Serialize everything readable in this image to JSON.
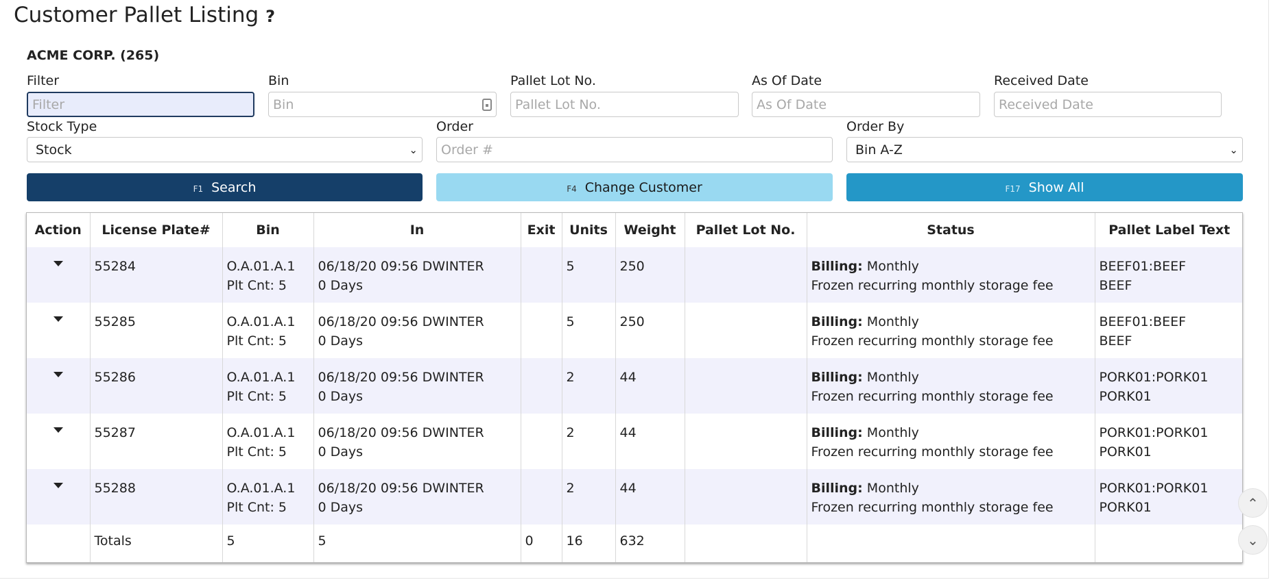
{
  "page": {
    "title": "Customer Pallet Listing",
    "help_symbol": "?"
  },
  "customer": {
    "name": "ACME CORP. (265)"
  },
  "filters": {
    "filter": {
      "label": "Filter",
      "placeholder": "Filter",
      "value": ""
    },
    "bin": {
      "label": "Bin",
      "placeholder": "Bin",
      "value": ""
    },
    "pallet_lot": {
      "label": "Pallet Lot No.",
      "placeholder": "Pallet Lot No.",
      "value": ""
    },
    "as_of_date": {
      "label": "As Of Date",
      "placeholder": "As Of Date",
      "value": ""
    },
    "received_date": {
      "label": "Received Date",
      "placeholder": "Received Date",
      "value": ""
    },
    "stock_type": {
      "label": "Stock Type",
      "selected": "Stock"
    },
    "order": {
      "label": "Order",
      "placeholder": "Order #",
      "value": ""
    },
    "order_by": {
      "label": "Order By",
      "selected": "Bin A-Z"
    }
  },
  "buttons": {
    "search": {
      "key": "F1",
      "label": "Search"
    },
    "change_customer": {
      "key": "F4",
      "label": "Change Customer"
    },
    "show_all": {
      "key": "F17",
      "label": "Show All"
    }
  },
  "table": {
    "columns": [
      "Action",
      "License Plate#",
      "Bin",
      "In",
      "Exit",
      "Units",
      "Weight",
      "Pallet Lot No.",
      "Status",
      "Pallet Label Text"
    ],
    "rows": [
      {
        "lp": "55284",
        "bin": "O.A.01.A.1",
        "plt_cnt": "Plt Cnt: 5",
        "in": "06/18/20 09:56 DWINTER",
        "days": "0 Days",
        "exit": "",
        "units": "5",
        "weight": "250",
        "lot": "",
        "billing_label": "Billing:",
        "billing_value": " Monthly",
        "status_desc": "Frozen recurring monthly storage fee",
        "label1": "BEEF01:BEEF",
        "label2": "BEEF"
      },
      {
        "lp": "55285",
        "bin": "O.A.01.A.1",
        "plt_cnt": "Plt Cnt: 5",
        "in": "06/18/20 09:56 DWINTER",
        "days": "0 Days",
        "exit": "",
        "units": "5",
        "weight": "250",
        "lot": "",
        "billing_label": "Billing:",
        "billing_value": " Monthly",
        "status_desc": "Frozen recurring monthly storage fee",
        "label1": "BEEF01:BEEF",
        "label2": "BEEF"
      },
      {
        "lp": "55286",
        "bin": "O.A.01.A.1",
        "plt_cnt": "Plt Cnt: 5",
        "in": "06/18/20 09:56 DWINTER",
        "days": "0 Days",
        "exit": "",
        "units": "2",
        "weight": "44",
        "lot": "",
        "billing_label": "Billing:",
        "billing_value": " Monthly",
        "status_desc": "Frozen recurring monthly storage fee",
        "label1": "PORK01:PORK01",
        "label2": "PORK01"
      },
      {
        "lp": "55287",
        "bin": "O.A.01.A.1",
        "plt_cnt": "Plt Cnt: 5",
        "in": "06/18/20 09:56 DWINTER",
        "days": "0 Days",
        "exit": "",
        "units": "2",
        "weight": "44",
        "lot": "",
        "billing_label": "Billing:",
        "billing_value": " Monthly",
        "status_desc": "Frozen recurring monthly storage fee",
        "label1": "PORK01:PORK01",
        "label2": "PORK01"
      },
      {
        "lp": "55288",
        "bin": "O.A.01.A.1",
        "plt_cnt": "Plt Cnt: 5",
        "in": "06/18/20 09:56 DWINTER",
        "days": "0 Days",
        "exit": "",
        "units": "2",
        "weight": "44",
        "lot": "",
        "billing_label": "Billing:",
        "billing_value": " Monthly",
        "status_desc": "Frozen recurring monthly storage fee",
        "label1": "PORK01:PORK01",
        "label2": "PORK01"
      }
    ],
    "totals": {
      "label": "Totals",
      "bin": "5",
      "in": "5",
      "exit": "0",
      "units": "16",
      "weight": "632"
    }
  },
  "scroll": {
    "up_icon": "chevron-up-icon",
    "down_icon": "chevron-down-icon"
  }
}
